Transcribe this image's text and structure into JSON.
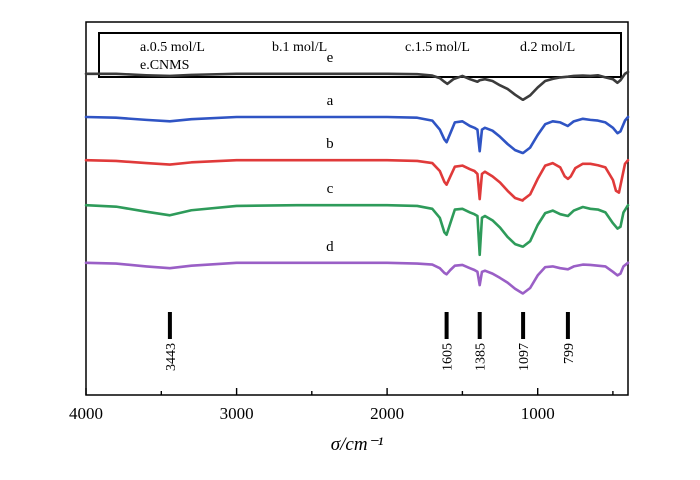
{
  "chart_data": {
    "type": "line",
    "xlabel": "σ/cm⁻¹",
    "x_reversed": true,
    "xlim": [
      4000,
      400
    ],
    "xticks": [
      4000,
      3000,
      2000,
      1000
    ],
    "grid": false,
    "legend_position": "top",
    "legend": [
      "a.0.5 mol/L",
      "b.1 mol/L",
      "c.1.5 mol/L",
      "d.2 mol/L",
      "e.CNMS"
    ],
    "annotations": [
      {
        "label": "3443",
        "x": 3443
      },
      {
        "label": "1605",
        "x": 1605
      },
      {
        "label": "1385",
        "x": 1385
      },
      {
        "label": "1097",
        "x": 1097
      },
      {
        "label": "799",
        "x": 799
      }
    ],
    "series": [
      {
        "name": "e",
        "color": "#3c3c3c",
        "baseline": 4.2,
        "x": [
          4000,
          3800,
          3600,
          3443,
          3300,
          3000,
          2600,
          2200,
          2000,
          1800,
          1700,
          1650,
          1620,
          1600,
          1560,
          1500,
          1450,
          1400,
          1385,
          1350,
          1300,
          1250,
          1200,
          1150,
          1100,
          1097,
          1050,
          1000,
          950,
          900,
          850,
          800,
          760,
          700,
          650,
          600,
          550,
          500,
          470,
          450,
          420,
          400
        ],
        "y": [
          0.0,
          0.0,
          -0.04,
          -0.06,
          -0.03,
          0.0,
          0.0,
          0.0,
          0.0,
          -0.01,
          -0.05,
          -0.12,
          -0.22,
          -0.28,
          -0.15,
          -0.06,
          -0.15,
          -0.22,
          -0.18,
          -0.15,
          -0.2,
          -0.32,
          -0.42,
          -0.58,
          -0.72,
          -0.72,
          -0.6,
          -0.38,
          -0.2,
          -0.14,
          -0.1,
          -0.08,
          -0.06,
          -0.05,
          -0.06,
          -0.04,
          -0.1,
          -0.15,
          -0.25,
          -0.18,
          0.0,
          0.05
        ]
      },
      {
        "name": "a",
        "color": "#2f54c4",
        "baseline": 3.0,
        "x": [
          4000,
          3800,
          3600,
          3443,
          3300,
          3000,
          2600,
          2200,
          2000,
          1800,
          1700,
          1650,
          1620,
          1605,
          1580,
          1550,
          1500,
          1450,
          1420,
          1400,
          1385,
          1370,
          1350,
          1300,
          1250,
          1200,
          1150,
          1100,
          1097,
          1050,
          1000,
          950,
          900,
          850,
          800,
          760,
          700,
          650,
          600,
          550,
          500,
          470,
          450,
          420,
          400
        ],
        "y": [
          0.0,
          -0.02,
          -0.08,
          -0.12,
          -0.06,
          0.0,
          0.0,
          0.0,
          0.0,
          -0.02,
          -0.1,
          -0.35,
          -0.62,
          -0.7,
          -0.45,
          -0.15,
          -0.12,
          -0.25,
          -0.3,
          -0.35,
          -0.95,
          -0.35,
          -0.3,
          -0.38,
          -0.55,
          -0.75,
          -0.92,
          -1.0,
          -1.0,
          -0.85,
          -0.5,
          -0.2,
          -0.12,
          -0.15,
          -0.25,
          -0.12,
          -0.05,
          -0.08,
          -0.1,
          -0.15,
          -0.3,
          -0.45,
          -0.4,
          -0.1,
          0.0
        ]
      },
      {
        "name": "b",
        "color": "#e03a3a",
        "baseline": 1.8,
        "x": [
          4000,
          3800,
          3600,
          3443,
          3300,
          3000,
          2600,
          2200,
          2000,
          1800,
          1700,
          1650,
          1620,
          1605,
          1580,
          1550,
          1500,
          1450,
          1420,
          1400,
          1385,
          1370,
          1350,
          1300,
          1250,
          1200,
          1150,
          1100,
          1097,
          1050,
          1000,
          950,
          900,
          850,
          820,
          799,
          780,
          750,
          700,
          650,
          600,
          550,
          500,
          480,
          460,
          440,
          420,
          400
        ],
        "y": [
          0.0,
          -0.02,
          -0.08,
          -0.12,
          -0.06,
          0.0,
          0.0,
          0.0,
          0.0,
          -0.02,
          -0.08,
          -0.3,
          -0.6,
          -0.68,
          -0.45,
          -0.18,
          -0.15,
          -0.25,
          -0.3,
          -0.38,
          -1.08,
          -0.38,
          -0.32,
          -0.45,
          -0.62,
          -0.85,
          -1.05,
          -1.12,
          -1.1,
          -0.95,
          -0.52,
          -0.15,
          -0.08,
          -0.2,
          -0.45,
          -0.52,
          -0.45,
          -0.22,
          -0.1,
          -0.1,
          -0.14,
          -0.2,
          -0.55,
          -0.85,
          -0.9,
          -0.5,
          -0.1,
          0.0
        ]
      },
      {
        "name": "c",
        "color": "#2e9b5a",
        "baseline": 0.55,
        "x": [
          4000,
          3800,
          3600,
          3443,
          3300,
          3000,
          2600,
          2200,
          2000,
          1800,
          1700,
          1650,
          1620,
          1605,
          1580,
          1550,
          1500,
          1450,
          1420,
          1400,
          1385,
          1370,
          1350,
          1300,
          1250,
          1200,
          1150,
          1100,
          1097,
          1050,
          1000,
          950,
          900,
          850,
          799,
          760,
          700,
          650,
          600,
          550,
          500,
          470,
          450,
          430,
          400
        ],
        "y": [
          0.0,
          -0.04,
          -0.18,
          -0.28,
          -0.14,
          -0.02,
          0.0,
          0.0,
          0.0,
          -0.02,
          -0.1,
          -0.35,
          -0.75,
          -0.82,
          -0.5,
          -0.12,
          -0.1,
          -0.2,
          -0.25,
          -0.3,
          -1.38,
          -0.35,
          -0.3,
          -0.42,
          -0.62,
          -0.88,
          -1.08,
          -1.15,
          -1.15,
          -1.0,
          -0.55,
          -0.22,
          -0.15,
          -0.25,
          -0.3,
          -0.15,
          -0.05,
          -0.1,
          -0.12,
          -0.2,
          -0.5,
          -0.65,
          -0.6,
          -0.2,
          0.0
        ]
      },
      {
        "name": "d",
        "color": "#9a5fc6",
        "baseline": -1.05,
        "x": [
          4000,
          3800,
          3600,
          3443,
          3300,
          3000,
          2600,
          2200,
          2000,
          1800,
          1700,
          1650,
          1620,
          1605,
          1580,
          1550,
          1500,
          1450,
          1420,
          1400,
          1385,
          1370,
          1350,
          1300,
          1250,
          1200,
          1150,
          1100,
          1097,
          1050,
          1000,
          950,
          900,
          850,
          799,
          760,
          700,
          650,
          600,
          550,
          500,
          470,
          450,
          430,
          400
        ],
        "y": [
          0.0,
          -0.02,
          -0.1,
          -0.15,
          -0.08,
          0.0,
          0.0,
          0.0,
          0.0,
          -0.02,
          -0.05,
          -0.15,
          -0.28,
          -0.32,
          -0.2,
          -0.08,
          -0.06,
          -0.15,
          -0.2,
          -0.25,
          -0.62,
          -0.25,
          -0.22,
          -0.3,
          -0.42,
          -0.55,
          -0.72,
          -0.85,
          -0.85,
          -0.7,
          -0.35,
          -0.12,
          -0.1,
          -0.15,
          -0.18,
          -0.1,
          -0.05,
          -0.06,
          -0.08,
          -0.1,
          -0.25,
          -0.35,
          -0.3,
          -0.1,
          0.0
        ]
      }
    ]
  }
}
